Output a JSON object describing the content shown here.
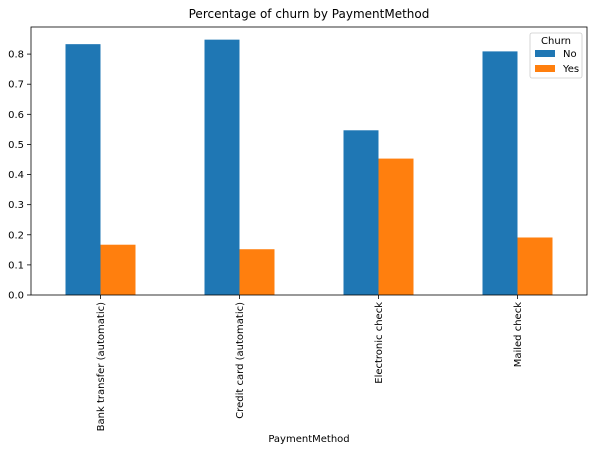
{
  "chart_data": {
    "type": "bar",
    "title": "Percentage of churn by PaymentMethod",
    "xlabel": "PaymentMethod",
    "ylabel": "",
    "categories": [
      "Bank transfer (automatic)",
      "Credit card (automatic)",
      "Electronic check",
      "Mailed check"
    ],
    "series": [
      {
        "name": "No",
        "values": [
          0.833,
          0.848,
          0.547,
          0.809
        ],
        "color": "#1f77b4"
      },
      {
        "name": "Yes",
        "values": [
          0.167,
          0.152,
          0.453,
          0.191
        ],
        "color": "#ff7f0e"
      }
    ],
    "ylim": [
      0,
      0.89
    ],
    "yticks": [
      "0.0",
      "0.1",
      "0.2",
      "0.3",
      "0.4",
      "0.5",
      "0.6",
      "0.7",
      "0.8"
    ],
    "grid": false,
    "legend": {
      "title": "Churn",
      "placement": "top-right"
    }
  }
}
